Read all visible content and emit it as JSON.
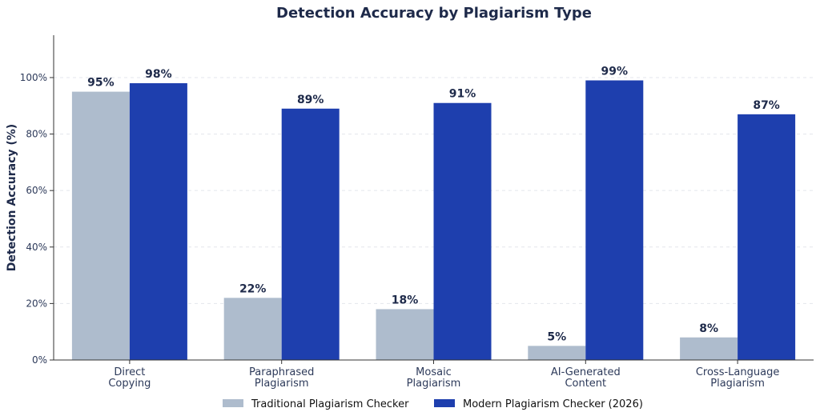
{
  "chart_data": {
    "type": "bar",
    "title": "Detection Accuracy by Plagiarism Type",
    "xlabel": "",
    "ylabel": "Detection Accuracy (%)",
    "ylim": [
      0,
      115
    ],
    "yticks": [
      0,
      20,
      40,
      60,
      80,
      100
    ],
    "ytick_labels": [
      "0%",
      "20%",
      "40%",
      "60%",
      "80%",
      "100%"
    ],
    "categories": [
      [
        "Direct",
        "Copying"
      ],
      [
        "Paraphrased",
        "Plagiarism"
      ],
      [
        "Mosaic",
        "Plagiarism"
      ],
      [
        "AI-Generated",
        "Content"
      ],
      [
        "Cross-Language",
        "Plagiarism"
      ]
    ],
    "series": [
      {
        "name": "Traditional Plagiarism Checker",
        "color": "#aebccd",
        "values": [
          95,
          22,
          18,
          5,
          8
        ],
        "labels": [
          "95%",
          "22%",
          "18%",
          "5%",
          "8%"
        ]
      },
      {
        "name": "Modern Plagiarism Checker (2026)",
        "color": "#1e3fae",
        "values": [
          98,
          89,
          91,
          99,
          87
        ],
        "labels": [
          "98%",
          "89%",
          "91%",
          "99%",
          "87%"
        ]
      }
    ],
    "grid": "horizontal-dashed",
    "legend_position": "bottom-center"
  }
}
